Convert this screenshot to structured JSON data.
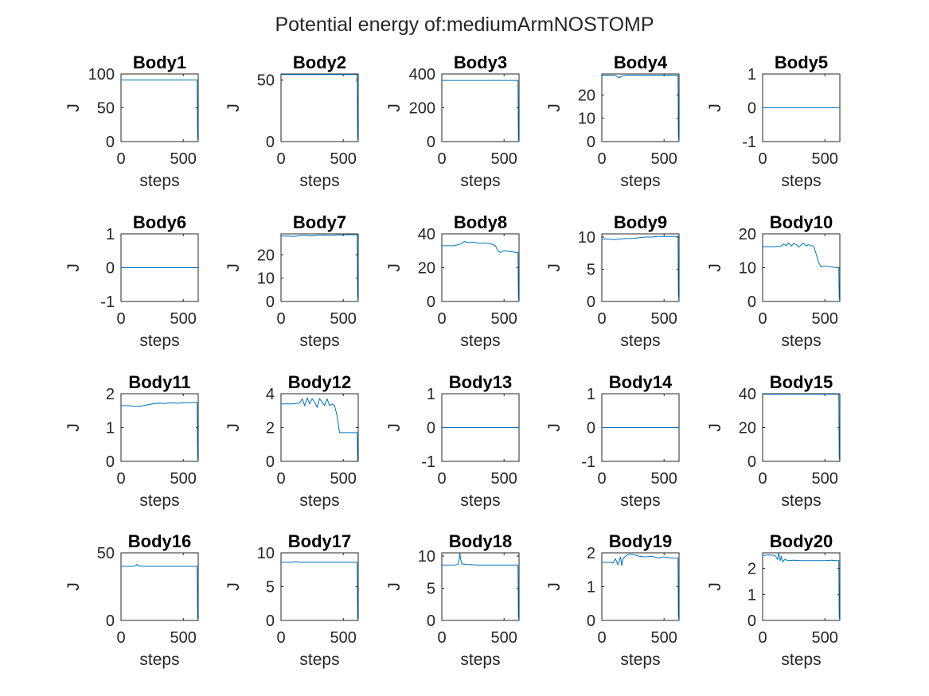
{
  "figure": {
    "title": "Potential energy of:mediumArmNOSTOMP",
    "line_color": "#0072BD"
  },
  "chart_data": [
    {
      "type": "line",
      "title": "Body1",
      "xlabel": "steps",
      "ylabel": "J",
      "xlim": [
        0,
        620
      ],
      "ylim": [
        0,
        100
      ],
      "xticks": [
        0,
        500
      ],
      "yticks": [
        0,
        50,
        100
      ],
      "x": [
        0,
        100,
        200,
        300,
        400,
        500,
        600,
        612,
        615,
        620
      ],
      "y": [
        91,
        91,
        91,
        91,
        91,
        91,
        91,
        91,
        5,
        0
      ]
    },
    {
      "type": "line",
      "title": "Body2",
      "xlabel": "steps",
      "ylabel": "J",
      "xlim": [
        0,
        620
      ],
      "ylim": [
        0,
        55
      ],
      "xticks": [
        0,
        500
      ],
      "yticks": [
        0,
        50
      ],
      "x": [
        0,
        100,
        200,
        300,
        400,
        500,
        600,
        612,
        615,
        620
      ],
      "y": [
        54.5,
        54.5,
        54.5,
        54.5,
        54.5,
        54.5,
        54.5,
        54.5,
        3,
        0
      ]
    },
    {
      "type": "line",
      "title": "Body3",
      "xlabel": "steps",
      "ylabel": "J",
      "xlim": [
        0,
        620
      ],
      "ylim": [
        0,
        400
      ],
      "xticks": [
        0,
        500
      ],
      "yticks": [
        0,
        200,
        400
      ],
      "x": [
        0,
        100,
        200,
        300,
        400,
        500,
        600,
        612,
        615,
        620
      ],
      "y": [
        362,
        362,
        362,
        362,
        362,
        362,
        362,
        362,
        10,
        0
      ]
    },
    {
      "type": "line",
      "title": "Body4",
      "xlabel": "steps",
      "ylabel": "J",
      "xlim": [
        0,
        620
      ],
      "ylim": [
        0,
        29
      ],
      "xticks": [
        0,
        500
      ],
      "yticks": [
        0,
        10,
        20
      ],
      "x": [
        0,
        100,
        120,
        140,
        160,
        200,
        300,
        400,
        500,
        600,
        612,
        615,
        620
      ],
      "y": [
        28.5,
        28.5,
        28,
        27.3,
        28,
        28.5,
        28.5,
        28.5,
        28.5,
        28.5,
        28.5,
        2,
        0
      ]
    },
    {
      "type": "line",
      "title": "Body5",
      "xlabel": "steps",
      "ylabel": "J",
      "xlim": [
        0,
        620
      ],
      "ylim": [
        -1,
        1
      ],
      "xticks": [
        0,
        500
      ],
      "yticks": [
        -1,
        0,
        1
      ],
      "x": [
        0,
        620
      ],
      "y": [
        0,
        0
      ]
    },
    {
      "type": "line",
      "title": "Body6",
      "xlabel": "steps",
      "ylabel": "J",
      "xlim": [
        0,
        620
      ],
      "ylim": [
        -1,
        1
      ],
      "xticks": [
        0,
        500
      ],
      "yticks": [
        -1,
        0,
        1
      ],
      "x": [
        0,
        620
      ],
      "y": [
        0,
        0
      ]
    },
    {
      "type": "line",
      "title": "Body7",
      "xlabel": "steps",
      "ylabel": "J",
      "xlim": [
        0,
        620
      ],
      "ylim": [
        0,
        29
      ],
      "xticks": [
        0,
        500
      ],
      "yticks": [
        0,
        10,
        20
      ],
      "x": [
        0,
        50,
        100,
        150,
        200,
        250,
        300,
        350,
        400,
        450,
        500,
        550,
        600,
        612,
        615,
        620
      ],
      "y": [
        28,
        28.1,
        27.9,
        28.2,
        28.3,
        28.1,
        28.4,
        28.5,
        28.3,
        28.6,
        28.5,
        28.7,
        28.6,
        28.6,
        2,
        0
      ]
    },
    {
      "type": "line",
      "title": "Body8",
      "xlabel": "steps",
      "ylabel": "J",
      "xlim": [
        0,
        620
      ],
      "ylim": [
        0,
        40
      ],
      "xticks": [
        0,
        500
      ],
      "yticks": [
        0,
        20,
        40
      ],
      "x": [
        0,
        50,
        100,
        150,
        180,
        200,
        250,
        300,
        350,
        400,
        430,
        450,
        470,
        500,
        550,
        600,
        612,
        615,
        620
      ],
      "y": [
        33,
        33,
        33,
        34,
        35.5,
        35,
        35,
        34.5,
        34.5,
        34,
        33,
        30,
        29,
        30,
        29.5,
        29,
        29,
        2,
        0
      ]
    },
    {
      "type": "line",
      "title": "Body9",
      "xlabel": "steps",
      "ylabel": "J",
      "xlim": [
        0,
        620
      ],
      "ylim": [
        0,
        10.5
      ],
      "xticks": [
        0,
        500
      ],
      "yticks": [
        0,
        5,
        10
      ],
      "x": [
        0,
        50,
        100,
        150,
        200,
        250,
        300,
        350,
        400,
        450,
        500,
        550,
        600,
        612,
        615,
        620
      ],
      "y": [
        9.7,
        9.7,
        9.6,
        9.7,
        9.8,
        9.8,
        9.9,
        10,
        10,
        10.1,
        10.1,
        10.1,
        10.1,
        10.1,
        1,
        0
      ]
    },
    {
      "type": "line",
      "title": "Body10",
      "xlabel": "steps",
      "ylabel": "J",
      "xlim": [
        0,
        620
      ],
      "ylim": [
        0,
        20
      ],
      "xticks": [
        0,
        500
      ],
      "yticks": [
        0,
        10,
        20
      ],
      "x": [
        0,
        50,
        100,
        150,
        170,
        190,
        210,
        230,
        250,
        270,
        290,
        310,
        330,
        350,
        370,
        390,
        410,
        430,
        450,
        470,
        500,
        550,
        600,
        612,
        615,
        620
      ],
      "y": [
        16.2,
        16.2,
        16.2,
        16.4,
        17,
        16.5,
        17.3,
        16.4,
        17.2,
        16.8,
        16.1,
        16.8,
        17.2,
        16.4,
        16.8,
        16.5,
        16.4,
        14,
        11.5,
        10.2,
        10.5,
        10.2,
        10,
        10,
        1,
        0
      ]
    },
    {
      "type": "line",
      "title": "Body11",
      "xlabel": "steps",
      "ylabel": "J",
      "xlim": [
        0,
        620
      ],
      "ylim": [
        0,
        2
      ],
      "xticks": [
        0,
        500
      ],
      "yticks": [
        0,
        1,
        2
      ],
      "x": [
        0,
        50,
        100,
        150,
        200,
        250,
        300,
        350,
        400,
        450,
        500,
        550,
        600,
        612,
        615,
        620
      ],
      "y": [
        1.65,
        1.65,
        1.63,
        1.62,
        1.66,
        1.7,
        1.72,
        1.71,
        1.73,
        1.72,
        1.73,
        1.74,
        1.74,
        1.74,
        0.1,
        0
      ]
    },
    {
      "type": "line",
      "title": "Body12",
      "xlabel": "steps",
      "ylabel": "J",
      "xlim": [
        0,
        620
      ],
      "ylim": [
        0,
        4
      ],
      "xticks": [
        0,
        500
      ],
      "yticks": [
        0,
        2,
        4
      ],
      "x": [
        0,
        50,
        100,
        150,
        170,
        190,
        210,
        230,
        250,
        270,
        290,
        310,
        330,
        350,
        370,
        390,
        410,
        430,
        450,
        470,
        500,
        550,
        600,
        612,
        615,
        620
      ],
      "y": [
        3.4,
        3.4,
        3.4,
        3.45,
        3.7,
        3.3,
        3.75,
        3.4,
        3.7,
        3.5,
        3.2,
        3.7,
        3.5,
        3.3,
        3.7,
        3.3,
        3.4,
        3.3,
        2.7,
        1.7,
        1.7,
        1.7,
        1.7,
        1.7,
        0.1,
        0
      ]
    },
    {
      "type": "line",
      "title": "Body13",
      "xlabel": "steps",
      "ylabel": "J",
      "xlim": [
        0,
        620
      ],
      "ylim": [
        -1,
        1
      ],
      "xticks": [
        0,
        500
      ],
      "yticks": [
        -1,
        0,
        1
      ],
      "x": [
        0,
        620
      ],
      "y": [
        0,
        0
      ]
    },
    {
      "type": "line",
      "title": "Body14",
      "xlabel": "steps",
      "ylabel": "J",
      "xlim": [
        0,
        620
      ],
      "ylim": [
        -1,
        1
      ],
      "xticks": [
        0,
        500
      ],
      "yticks": [
        -1,
        0,
        1
      ],
      "x": [
        0,
        620
      ],
      "y": [
        0,
        0
      ]
    },
    {
      "type": "line",
      "title": "Body15",
      "xlabel": "steps",
      "ylabel": "J",
      "xlim": [
        0,
        620
      ],
      "ylim": [
        0,
        40
      ],
      "xticks": [
        0,
        500
      ],
      "yticks": [
        0,
        20,
        40
      ],
      "x": [
        0,
        100,
        200,
        300,
        400,
        500,
        600,
        612,
        615,
        620
      ],
      "y": [
        39.7,
        39.7,
        39.7,
        39.7,
        39.7,
        39.7,
        39.7,
        39.7,
        2,
        0
      ]
    },
    {
      "type": "line",
      "title": "Body16",
      "xlabel": "steps",
      "ylabel": "J",
      "xlim": [
        0,
        620
      ],
      "ylim": [
        0,
        50
      ],
      "xticks": [
        0,
        500
      ],
      "yticks": [
        0,
        50
      ],
      "x": [
        0,
        100,
        120,
        130,
        140,
        160,
        200,
        300,
        400,
        500,
        600,
        612,
        615,
        620
      ],
      "y": [
        40,
        40,
        40.5,
        41.5,
        40.5,
        40,
        40,
        40,
        40,
        40,
        40,
        40,
        2,
        0
      ]
    },
    {
      "type": "line",
      "title": "Body17",
      "xlabel": "steps",
      "ylabel": "J",
      "xlim": [
        0,
        620
      ],
      "ylim": [
        0,
        10
      ],
      "xticks": [
        0,
        500
      ],
      "yticks": [
        0,
        5,
        10
      ],
      "x": [
        0,
        50,
        100,
        120,
        140,
        200,
        300,
        400,
        500,
        600,
        612,
        615,
        620
      ],
      "y": [
        8.6,
        8.6,
        8.6,
        8.7,
        8.6,
        8.6,
        8.6,
        8.6,
        8.6,
        8.6,
        8.6,
        0.5,
        0
      ]
    },
    {
      "type": "line",
      "title": "Body18",
      "xlabel": "steps",
      "ylabel": "J",
      "xlim": [
        0,
        620
      ],
      "ylim": [
        0,
        10.5
      ],
      "xticks": [
        0,
        500
      ],
      "yticks": [
        0,
        5,
        10
      ],
      "x": [
        0,
        100,
        130,
        140,
        145,
        150,
        160,
        200,
        300,
        400,
        500,
        600,
        612,
        615,
        620
      ],
      "y": [
        8.6,
        8.6,
        8.7,
        9.5,
        10.5,
        9.6,
        8.8,
        8.7,
        8.6,
        8.6,
        8.6,
        8.6,
        8.6,
        0.5,
        0
      ]
    },
    {
      "type": "line",
      "title": "Body19",
      "xlabel": "steps",
      "ylabel": "J",
      "xlim": [
        0,
        620
      ],
      "ylim": [
        0,
        2
      ],
      "xticks": [
        0,
        500
      ],
      "yticks": [
        0,
        1,
        2
      ],
      "x": [
        0,
        50,
        90,
        110,
        130,
        150,
        160,
        170,
        190,
        210,
        250,
        300,
        350,
        400,
        450,
        500,
        550,
        600,
        612,
        615,
        620
      ],
      "y": [
        1.72,
        1.72,
        1.7,
        1.82,
        1.65,
        1.88,
        1.62,
        1.82,
        1.9,
        1.95,
        1.95,
        1.9,
        1.88,
        1.9,
        1.85,
        1.88,
        1.85,
        1.84,
        1.84,
        0.1,
        0
      ]
    },
    {
      "type": "line",
      "title": "Body20",
      "xlabel": "steps",
      "ylabel": "J",
      "xlim": [
        0,
        620
      ],
      "ylim": [
        0,
        2.6
      ],
      "xticks": [
        0,
        500
      ],
      "yticks": [
        0,
        1,
        2
      ],
      "x": [
        0,
        50,
        100,
        120,
        130,
        140,
        150,
        160,
        180,
        200,
        250,
        300,
        400,
        500,
        550,
        600,
        612,
        615,
        620
      ],
      "y": [
        2.5,
        2.52,
        2.5,
        2.35,
        2.6,
        2.3,
        2.45,
        2.25,
        2.35,
        2.3,
        2.32,
        2.3,
        2.3,
        2.3,
        2.32,
        2.3,
        2.3,
        0.1,
        0
      ]
    }
  ]
}
